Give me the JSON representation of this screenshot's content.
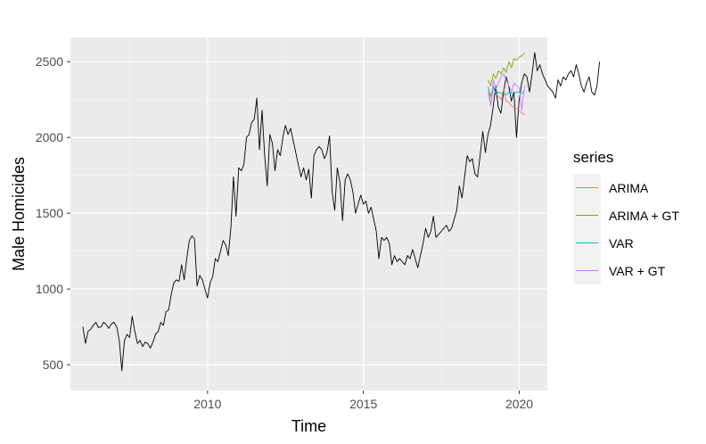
{
  "colors": {
    "panel_bg": "#EBEBEB",
    "grid_major": "#FFFFFF",
    "grid_minor": "#F5F5F5",
    "history": "#000000",
    "arima": "#F8766D",
    "arima_gt": "#7CAE00",
    "var": "#00BFC4",
    "var_gt": "#C77CFF"
  },
  "chart_data": {
    "type": "line",
    "xlabel": "Time",
    "ylabel": "Male Homicides",
    "xlim": [
      2005.6,
      2020.9
    ],
    "ylim": [
      330,
      2660
    ],
    "x_ticks": [
      2010,
      2015,
      2020
    ],
    "y_ticks": [
      500,
      1000,
      1500,
      2000,
      2500
    ],
    "grid": true,
    "legend": {
      "title": "series",
      "position": "right",
      "items": [
        {
          "label": "ARIMA",
          "color": "#F8766D"
        },
        {
          "label": "ARIMA + GT",
          "color": "#7CAE00"
        },
        {
          "label": "VAR",
          "color": "#00BFC4"
        },
        {
          "label": "VAR + GT",
          "color": "#C77CFF"
        }
      ]
    },
    "history": {
      "start": 2006.0,
      "step": 0.0833,
      "values": [
        750,
        640,
        720,
        735,
        760,
        780,
        745,
        750,
        780,
        765,
        740,
        770,
        780,
        750,
        660,
        460,
        660,
        700,
        680,
        820,
        720,
        640,
        660,
        620,
        650,
        640,
        610,
        650,
        700,
        720,
        780,
        760,
        850,
        860,
        960,
        1040,
        1060,
        1050,
        1160,
        1060,
        1200,
        1320,
        1350,
        1330,
        1020,
        1090,
        1060,
        1000,
        940,
        1040,
        1080,
        1200,
        1180,
        1250,
        1320,
        1290,
        1220,
        1400,
        1740,
        1480,
        1800,
        1780,
        1820,
        2000,
        2020,
        2100,
        2120,
        2260,
        1920,
        2180,
        1880,
        1680,
        2020,
        1960,
        1780,
        1920,
        1880,
        2000,
        2080,
        2020,
        2060,
        1980,
        1900,
        1820,
        1740,
        1800,
        1720,
        1790,
        1600,
        1880,
        1920,
        1940,
        1920,
        1860,
        1900,
        2010,
        1640,
        1520,
        1800,
        1700,
        1450,
        1720,
        1760,
        1720,
        1640,
        1500,
        1560,
        1620,
        1560,
        1580,
        1500,
        1540,
        1460,
        1380,
        1200,
        1340,
        1320,
        1340,
        1300,
        1160,
        1220,
        1180,
        1200,
        1180,
        1160,
        1220,
        1200,
        1260,
        1200,
        1140,
        1220,
        1300,
        1400,
        1340,
        1380,
        1480,
        1340,
        1360,
        1380,
        1400,
        1420,
        1380,
        1400,
        1460,
        1520,
        1680,
        1600,
        1740,
        1880,
        1840,
        1860,
        1760,
        1740,
        1880,
        2040,
        1900,
        2020,
        2080,
        2200,
        2340,
        2200,
        2160,
        2300,
        2400,
        2340,
        2240,
        2300,
        2000,
        2240,
        2360,
        2420,
        2400,
        2300,
        2420,
        2560,
        2440,
        2480,
        2420,
        2380,
        2340,
        2320,
        2300,
        2260,
        2380,
        2340,
        2400,
        2380,
        2420,
        2440,
        2400,
        2480,
        2420,
        2340,
        2300,
        2360,
        2400,
        2300,
        2280,
        2340,
        2500
      ]
    },
    "series": [
      {
        "name": "ARIMA",
        "x": [
          2019.0,
          2019.08,
          2019.17,
          2019.25,
          2019.33,
          2019.42,
          2019.5,
          2019.58,
          2019.67,
          2019.75,
          2019.83,
          2019.92,
          2020.0,
          2020.08,
          2020.17
        ],
        "values": [
          2340,
          2210,
          2330,
          2290,
          2270,
          2250,
          2320,
          2240,
          2230,
          2210,
          2200,
          2190,
          2180,
          2160,
          2150
        ]
      },
      {
        "name": "ARIMA + GT",
        "x": [
          2019.0,
          2019.08,
          2019.17,
          2019.25,
          2019.33,
          2019.42,
          2019.5,
          2019.58,
          2019.67,
          2019.75,
          2019.83,
          2019.92,
          2020.0,
          2020.08,
          2020.17
        ],
        "values": [
          2380,
          2340,
          2420,
          2390,
          2440,
          2420,
          2460,
          2430,
          2500,
          2460,
          2520,
          2510,
          2530,
          2540,
          2560
        ]
      },
      {
        "name": "VAR",
        "x": [
          2019.0,
          2019.08,
          2019.17,
          2019.25,
          2019.33,
          2019.42,
          2019.5,
          2019.58,
          2019.67,
          2019.75,
          2019.83,
          2019.92,
          2020.0,
          2020.08,
          2020.17
        ],
        "values": [
          2330,
          2270,
          2340,
          2280,
          2300,
          2290,
          2290,
          2280,
          2300,
          2290,
          2290,
          2300,
          2300,
          2290,
          2310
        ]
      },
      {
        "name": "VAR + GT",
        "x": [
          2019.0,
          2019.08,
          2019.17,
          2019.25,
          2019.33,
          2019.42,
          2019.5,
          2019.58,
          2019.67,
          2019.75,
          2019.83,
          2019.92,
          2020.0,
          2020.08,
          2020.17
        ],
        "values": [
          2300,
          2210,
          2380,
          2320,
          2360,
          2400,
          2420,
          2380,
          2340,
          2300,
          2360,
          2340,
          2330,
          2180,
          2340
        ]
      }
    ]
  }
}
